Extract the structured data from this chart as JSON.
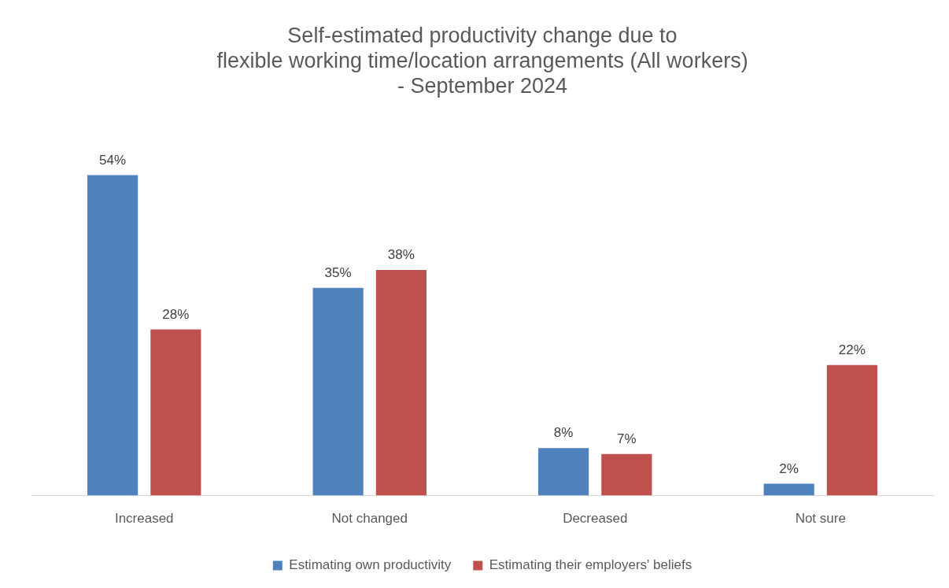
{
  "chart_data": {
    "type": "bar",
    "title": "Self-estimated productivity change due to\nflexible working time/location arrangements (All workers)\n- September 2024",
    "categories": [
      "Increased",
      "Not changed",
      "Decreased",
      "Not sure"
    ],
    "series": [
      {
        "name": "Estimating own productivity",
        "color": "#4f81bd",
        "values": [
          54,
          35,
          8,
          2
        ],
        "value_labels": [
          "54%",
          "35%",
          "8%",
          "2%"
        ]
      },
      {
        "name": "Estimating their employers' beliefs",
        "color": "#c0504d",
        "values": [
          28,
          38,
          7,
          22
        ],
        "value_labels": [
          "28%",
          "38%",
          "7%",
          "22%"
        ]
      }
    ],
    "legend": "bottom"
  }
}
